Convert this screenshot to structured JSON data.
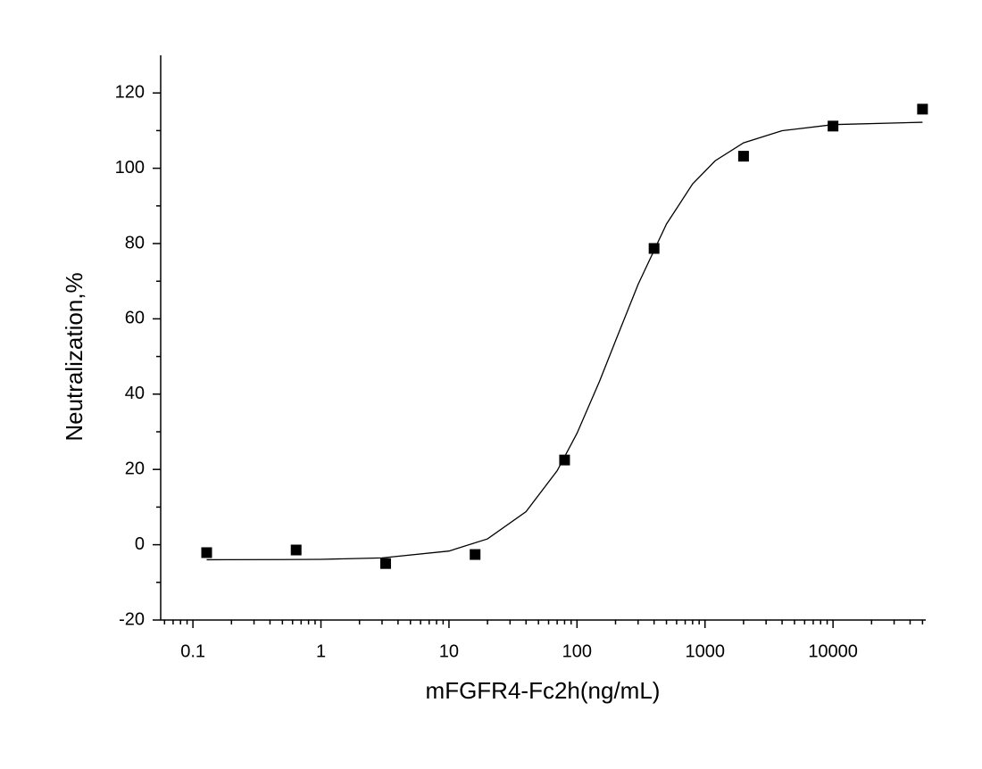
{
  "chart_data": {
    "type": "scatter",
    "x_label": "mFGFR4-Fc2h(ng/mL)",
    "y_label": "Neutralization,%",
    "x_scale": "log",
    "x": [
      0.128,
      0.64,
      3.2,
      16,
      80,
      400,
      2000,
      10000,
      50000
    ],
    "values": [
      -2.1,
      -1.4,
      -5.0,
      -2.6,
      22.5,
      78.7,
      103.2,
      111.2,
      115.7
    ],
    "color": "#000000",
    "fit": {
      "color": "#000000",
      "x": [
        0.128,
        0.5,
        1,
        3,
        10,
        20,
        40,
        70,
        100,
        150,
        200,
        300,
        500,
        800,
        1200,
        2000,
        4000,
        10000,
        50000
      ],
      "values": [
        -3.99,
        -3.95,
        -3.88,
        -3.51,
        -1.68,
        1.55,
        8.78,
        19.66,
        29.59,
        43.41,
        54.15,
        69.14,
        85.19,
        95.83,
        101.98,
        106.75,
        109.97,
        111.59,
        112.21
      ]
    },
    "xlim": [
      0.056,
      53000
    ],
    "ylim": [
      -20,
      130
    ],
    "xticks": [
      0.1,
      1,
      10,
      100,
      1000,
      10000
    ],
    "xminorticks": [
      0.06,
      0.07,
      0.08,
      0.09,
      0.2,
      0.3,
      0.4,
      0.5,
      0.6,
      0.7,
      0.8,
      0.9,
      2,
      3,
      4,
      5,
      6,
      7,
      8,
      9,
      20,
      30,
      40,
      50,
      60,
      70,
      80,
      90,
      200,
      300,
      400,
      500,
      600,
      700,
      800,
      900,
      2000,
      3000,
      4000,
      5000,
      6000,
      7000,
      8000,
      9000,
      20000,
      30000,
      40000,
      50000
    ],
    "yticks": [
      -20,
      0,
      20,
      40,
      60,
      80,
      100,
      120
    ],
    "yminorticks": [
      -10,
      10,
      30,
      50,
      70,
      90,
      110
    ],
    "grid": false
  }
}
